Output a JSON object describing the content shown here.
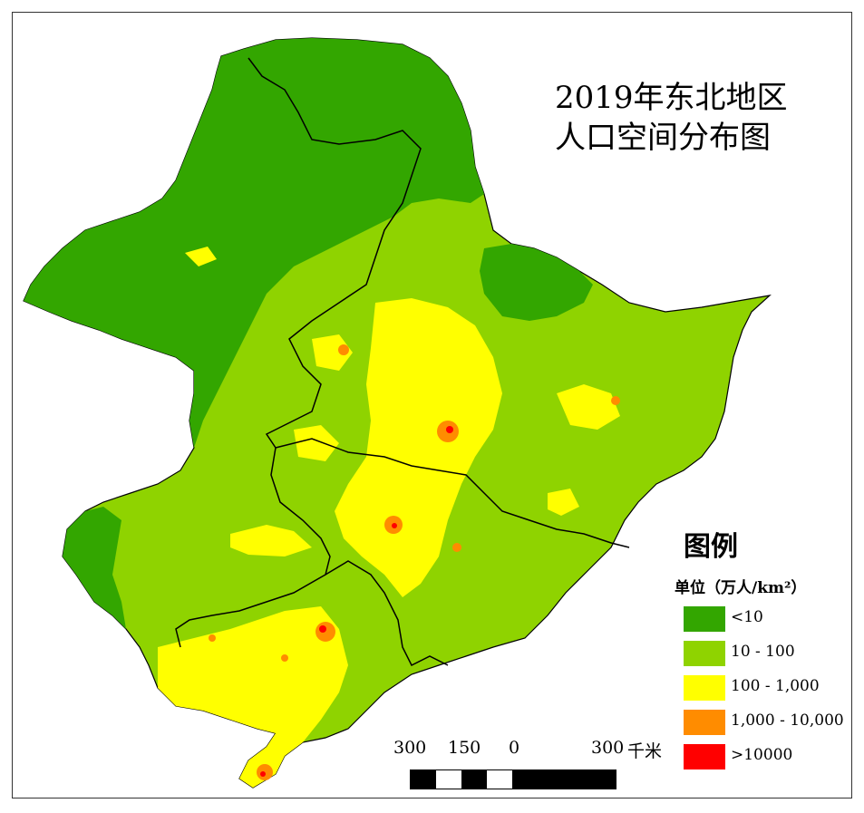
{
  "title": {
    "line1": "2019年东北地区",
    "line2": "人口空间分布图"
  },
  "legend": {
    "title": "图例",
    "unit": "单位（万人/km²）",
    "items": [
      {
        "label": "<10",
        "color": "#33a600"
      },
      {
        "label": "10 - 100",
        "color": "#8fd300"
      },
      {
        "label": "100 - 1,000",
        "color": "#ffff00"
      },
      {
        "label": "1,000 - 10,000",
        "color": "#ff8c00"
      },
      {
        "label": ">10000",
        "color": "#ff0000"
      }
    ]
  },
  "scale_bar": {
    "ticks": [
      "300",
      "150",
      "0",
      "300"
    ],
    "unit": "千米"
  }
}
